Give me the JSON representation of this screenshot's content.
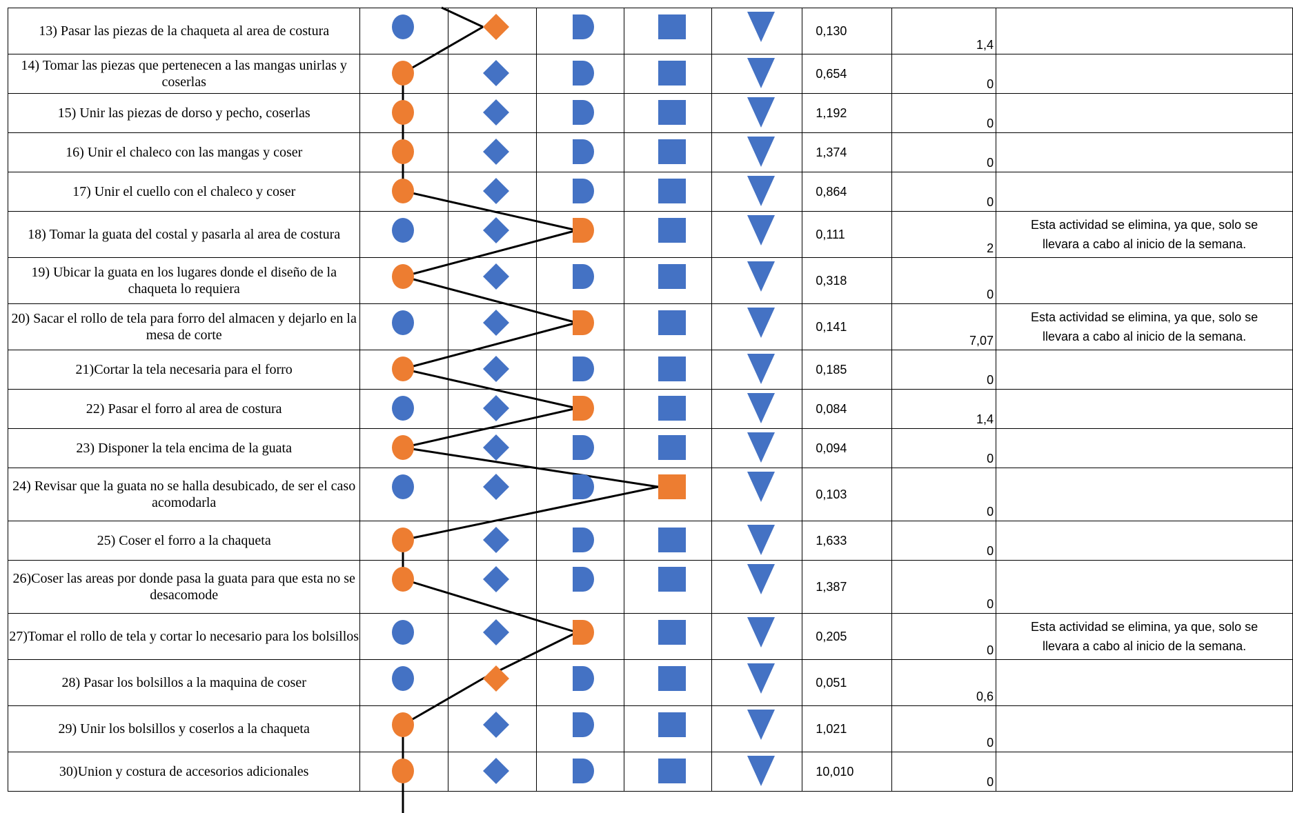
{
  "colors": {
    "blue": "#4472C4",
    "orange": "#ED7D31",
    "line": "#000000"
  },
  "symbols": [
    "operation-circle",
    "transport-diamond",
    "delay-d",
    "inspection-square",
    "storage-triangle"
  ],
  "rows": [
    {
      "activity": "13) Pasar las piezas de la chaqueta al area de costura",
      "time": "0,130",
      "distance": "1,4",
      "note": "",
      "active": 1
    },
    {
      "activity": "14) Tomar las piezas que pertenecen a las mangas unirlas y coserlas",
      "time": "0,654",
      "distance": "0",
      "note": "",
      "active": 0
    },
    {
      "activity": "15) Unir las piezas de dorso y pecho, coserlas",
      "time": "1,192",
      "distance": "0",
      "note": "",
      "active": 0
    },
    {
      "activity": "16) Unir el chaleco con las mangas y coser",
      "time": "1,374",
      "distance": "0",
      "note": "",
      "active": 0
    },
    {
      "activity": "17) Unir el cuello con el chaleco y coser",
      "time": "0,864",
      "distance": "0",
      "note": "",
      "active": 0
    },
    {
      "activity": "18) Tomar la guata del costal y pasarla al area de costura",
      "time": "0,111",
      "distance": "2",
      "note": "Esta actividad se elimina, ya que, solo se llevara a cabo al inicio de la semana.",
      "active": 2
    },
    {
      "activity": "19) Ubicar la guata en los lugares donde el diseño de la chaqueta lo requiera",
      "time": "0,318",
      "distance": "0",
      "note": "",
      "active": 0
    },
    {
      "activity": "20) Sacar el rollo de tela para forro del almacen y dejarlo en la mesa de corte",
      "time": "0,141",
      "distance": "7,07",
      "note": "Esta actividad se elimina, ya que, solo se llevara a cabo al inicio de la semana.",
      "active": 2
    },
    {
      "activity": "21)Cortar la tela necesaria para el forro",
      "time": "0,185",
      "distance": "0",
      "note": "",
      "active": 0
    },
    {
      "activity": "22) Pasar el forro al area de costura",
      "time": "0,084",
      "distance": "1,4",
      "note": "",
      "active": 2
    },
    {
      "activity": "23) Disponer la tela encima de la guata",
      "time": "0,094",
      "distance": "0",
      "note": "",
      "active": 0
    },
    {
      "activity": "24) Revisar que la guata no se halla desubicado, de ser el caso acomodarla",
      "time": "0,103",
      "distance": "0",
      "note": "",
      "active": 3
    },
    {
      "activity": "25) Coser el forro a la chaqueta",
      "time": "1,633",
      "distance": "0",
      "note": "",
      "active": 0
    },
    {
      "activity": "26)Coser las areas por donde pasa la guata para que esta no se desacomode",
      "time": "1,387",
      "distance": "0",
      "note": "",
      "active": 0
    },
    {
      "activity": "27)Tomar el rollo de tela y cortar lo necesario para los bolsillos",
      "time": "0,205",
      "distance": "0",
      "note": "Esta actividad se elimina, ya que, solo se llevara a cabo al inicio de la semana.",
      "active": 2
    },
    {
      "activity": "28) Pasar los bolsillos a la maquina de coser",
      "time": "0,051",
      "distance": "0,6",
      "note": "",
      "active": 1
    },
    {
      "activity": "29) Unir los bolsillos y coserlos a la chaqueta",
      "time": "1,021",
      "distance": "0",
      "note": "",
      "active": 0
    },
    {
      "activity": "30)Union y costura de accesorios adicionales",
      "time": "10,010",
      "distance": "0",
      "note": "",
      "active": 0
    }
  ]
}
